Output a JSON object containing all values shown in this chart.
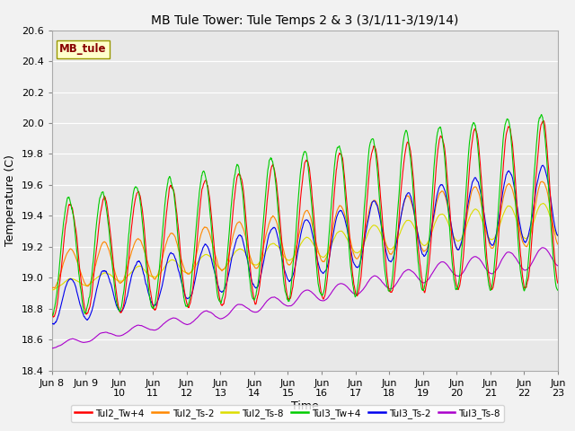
{
  "title": "MB Tule Tower: Tule Temps 2 & 3 (3/1/11-3/19/14)",
  "xlabel": "Time",
  "ylabel": "Temperature (C)",
  "ylim": [
    18.4,
    20.6
  ],
  "x_tick_labels": [
    "Jun 8",
    "Jun 9",
    "Jun 10",
    "Jun 11",
    "Jun 12",
    "Jun 13",
    "Jun 14",
    "Jun 15",
    "Jun 16",
    "Jun 17",
    "Jun 18",
    "Jun 19",
    "Jun 20",
    "Jun 21",
    "Jun 22",
    "Jun 23"
  ],
  "x_tick_positions": [
    0,
    1,
    2,
    3,
    4,
    5,
    6,
    7,
    8,
    9,
    10,
    11,
    12,
    13,
    14,
    15
  ],
  "series_colors": {
    "Tul2_Tw+4": "#ff0000",
    "Tul2_Ts-2": "#ff8800",
    "Tul2_Ts-8": "#dddd00",
    "Tul3_Tw+4": "#00cc00",
    "Tul3_Ts-2": "#0000ee",
    "Tul3_Ts-8": "#aa00cc"
  },
  "legend_label": "MB_tule",
  "n_points": 1500
}
